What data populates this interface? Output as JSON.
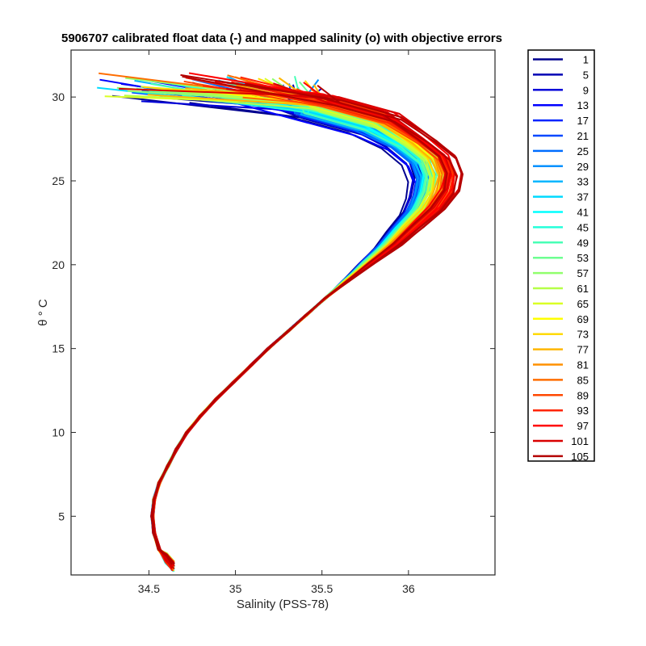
{
  "chart_data": {
    "type": "line",
    "title": "5906707 calibrated float data (-) and mapped salinity (o) with objective errors",
    "xlabel": "Salinity (PSS-78)",
    "ylabel": "θ ° C",
    "xlim": [
      34.05,
      36.5
    ],
    "ylim": [
      1.5,
      32.8
    ],
    "xticks": [
      34.5,
      35,
      35.5,
      36
    ],
    "xtick_labels": [
      "34.5",
      "35",
      "35.5",
      "36"
    ],
    "yticks": [
      5,
      10,
      15,
      20,
      25,
      30
    ],
    "ytick_labels": [
      "5",
      "10",
      "15",
      "20",
      "25",
      "30"
    ],
    "grid": false,
    "legend_position": "outside-right",
    "base_profile": [
      [
        34.64,
        2.0
      ],
      [
        34.6,
        2.5
      ],
      [
        34.56,
        3.0
      ],
      [
        34.53,
        4.0
      ],
      [
        34.52,
        5.0
      ],
      [
        34.53,
        6.0
      ],
      [
        34.56,
        7.0
      ],
      [
        34.61,
        8.0
      ],
      [
        34.66,
        9.0
      ],
      [
        34.72,
        10.0
      ],
      [
        34.8,
        11.0
      ],
      [
        34.89,
        12.0
      ],
      [
        34.99,
        13.0
      ],
      [
        35.09,
        14.0
      ],
      [
        35.19,
        15.0
      ],
      [
        35.3,
        16.0
      ],
      [
        35.41,
        17.0
      ],
      [
        35.52,
        18.0
      ],
      [
        35.64,
        19.0
      ],
      [
        35.76,
        20.0
      ],
      [
        35.88,
        21.0
      ],
      [
        35.98,
        22.0
      ],
      [
        36.08,
        23.0
      ],
      [
        36.14,
        24.0
      ],
      [
        36.16,
        25.0
      ],
      [
        36.12,
        26.0
      ],
      [
        36.0,
        27.0
      ],
      [
        35.8,
        28.0
      ],
      [
        35.45,
        29.0
      ],
      [
        35.0,
        29.8
      ],
      [
        34.6,
        30.1
      ]
    ],
    "series": [
      {
        "name": "1",
        "color": "#00008f"
      },
      {
        "name": "5",
        "color": "#0000b4"
      },
      {
        "name": "9",
        "color": "#0000d9"
      },
      {
        "name": "13",
        "color": "#0000ff"
      },
      {
        "name": "17",
        "color": "#0024ff"
      },
      {
        "name": "21",
        "color": "#0048ff"
      },
      {
        "name": "25",
        "color": "#006dff"
      },
      {
        "name": "29",
        "color": "#0091ff"
      },
      {
        "name": "33",
        "color": "#00b6ff"
      },
      {
        "name": "37",
        "color": "#00daff"
      },
      {
        "name": "41",
        "color": "#00ffff"
      },
      {
        "name": "45",
        "color": "#24ffda"
      },
      {
        "name": "49",
        "color": "#48ffb6"
      },
      {
        "name": "53",
        "color": "#6dff91"
      },
      {
        "name": "57",
        "color": "#91ff6d"
      },
      {
        "name": "61",
        "color": "#b6ff48"
      },
      {
        "name": "65",
        "color": "#daff24"
      },
      {
        "name": "69",
        "color": "#ffff00"
      },
      {
        "name": "73",
        "color": "#ffda00"
      },
      {
        "name": "77",
        "color": "#ffb600"
      },
      {
        "name": "81",
        "color": "#ff9100"
      },
      {
        "name": "85",
        "color": "#ff6d00"
      },
      {
        "name": "89",
        "color": "#ff4800"
      },
      {
        "name": "93",
        "color": "#ff2400"
      },
      {
        "name": "97",
        "color": "#ff0000"
      },
      {
        "name": "101",
        "color": "#d90000"
      },
      {
        "name": "105",
        "color": "#b40000"
      }
    ]
  }
}
